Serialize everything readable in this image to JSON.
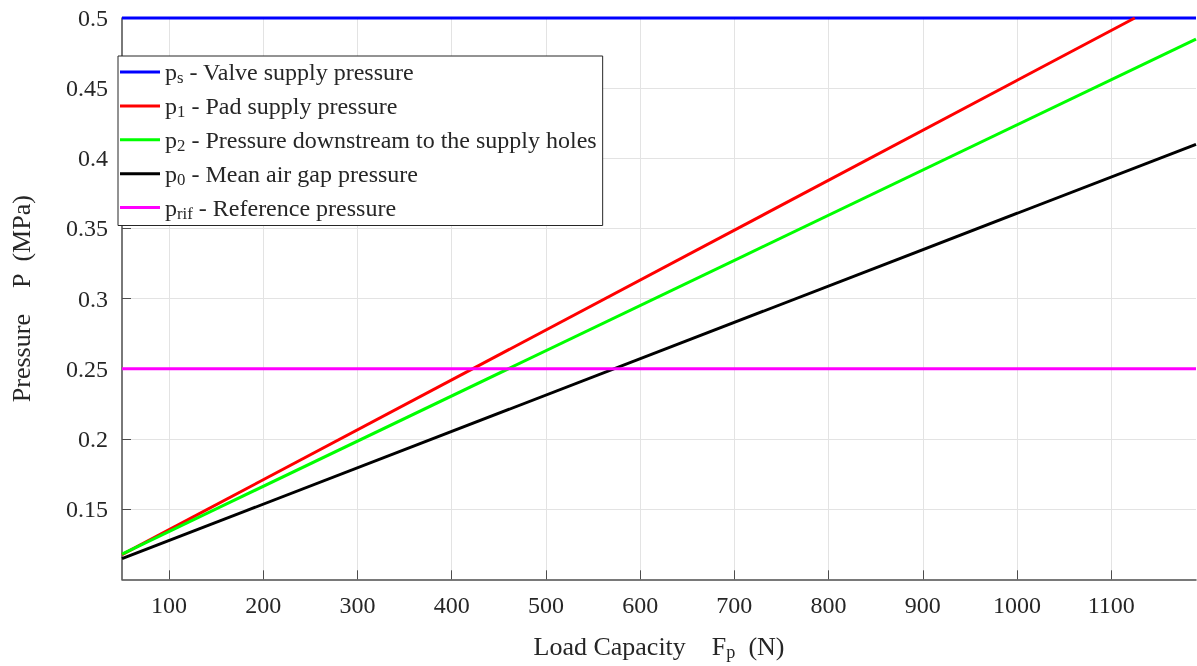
{
  "chart_data": {
    "type": "line",
    "xlabel": "Load Capacity    F$_{p}$  (N)",
    "ylabel": "Pressure    P  (MPa)",
    "xlim": [
      50,
      1190
    ],
    "xticks": [
      100,
      200,
      300,
      400,
      500,
      600,
      700,
      800,
      900,
      1000,
      1100
    ],
    "ylim": [
      0.1,
      0.5
    ],
    "yticks": [
      0.15,
      0.2,
      0.25,
      0.3,
      0.35,
      0.4,
      0.45,
      0.5
    ],
    "grid": true,
    "legend": "top left",
    "line_style": "solid",
    "series": [
      {
        "name": "p$_{s}$ - Valve supply pressure",
        "color": "#0000ff",
        "x": [
          50,
          1190
        ],
        "values": [
          0.5,
          0.5
        ]
      },
      {
        "name": "p$_{1}$ - Pad supply pressure",
        "color": "#ff0000",
        "x": [
          50,
          1125
        ],
        "values": [
          0.1176,
          0.5
        ]
      },
      {
        "name": "p$_{2}$ - Pressure downstream to the supply holes",
        "color": "#00ff00",
        "x": [
          50,
          1190
        ],
        "values": [
          0.118,
          0.485
        ]
      },
      {
        "name": "p$_{0}$ - Mean air gap pressure",
        "color": "#000000",
        "x": [
          50,
          1190
        ],
        "values": [
          0.1147,
          0.41
        ]
      },
      {
        "name": "p$_{rif}$ - Reference pressure",
        "color": "#ff00ff",
        "x": [
          50,
          1190
        ],
        "values": [
          0.25,
          0.25
        ]
      }
    ]
  }
}
